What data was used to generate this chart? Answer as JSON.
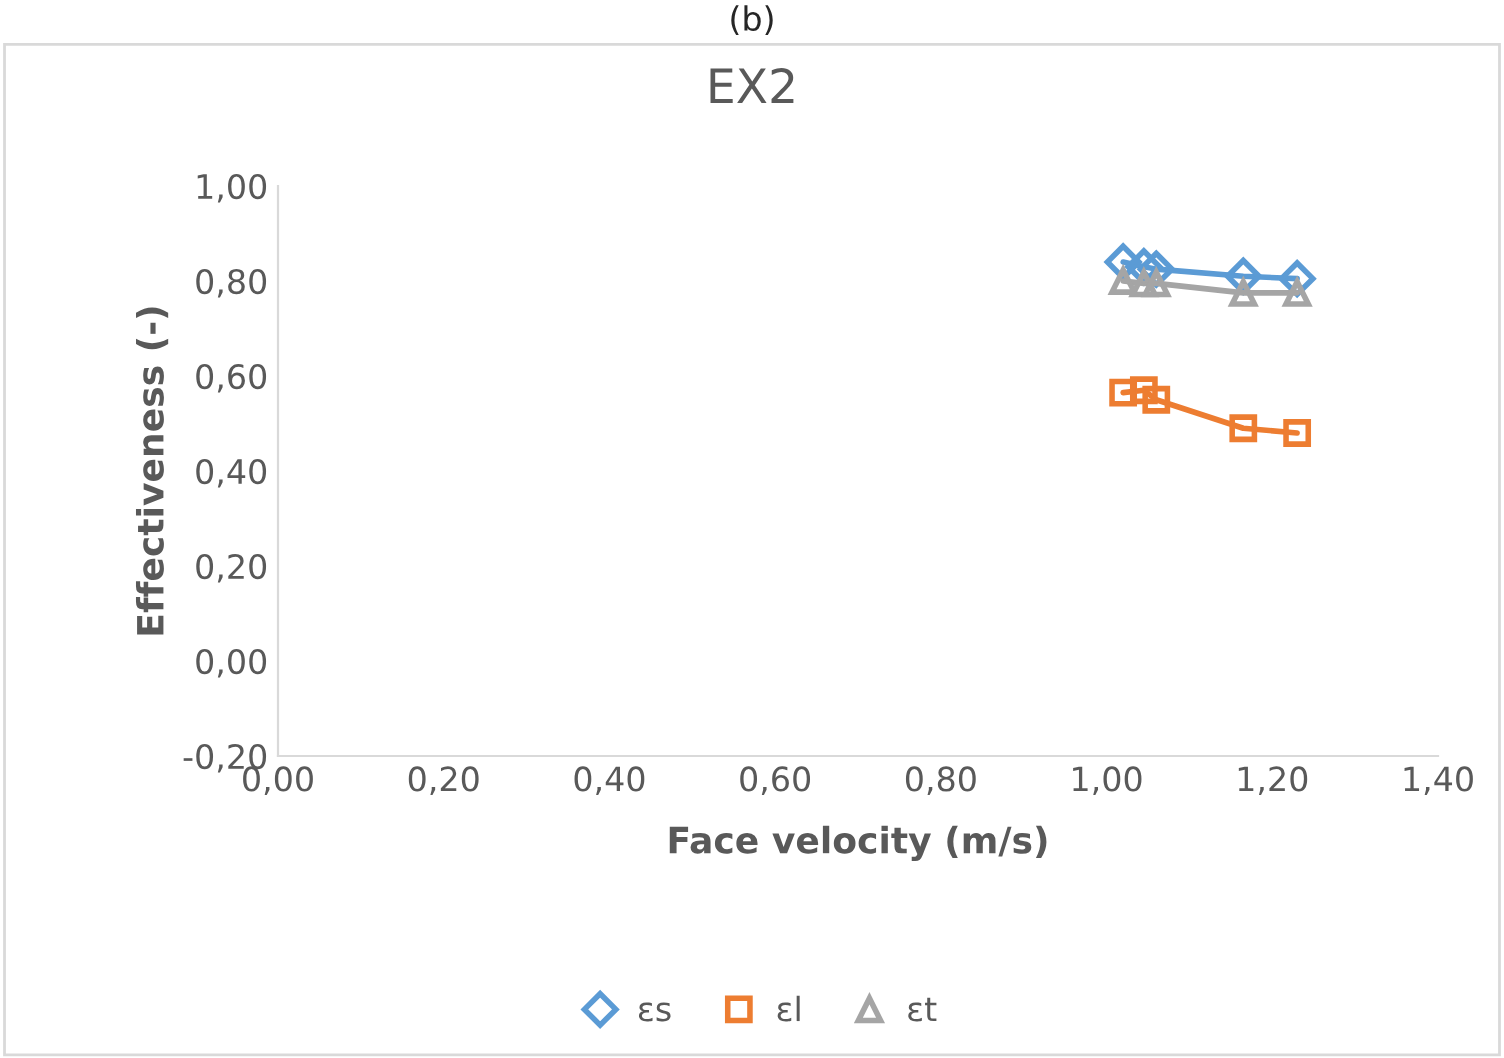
{
  "chart_data": {
    "type": "line",
    "title": "EX2",
    "xlabel": "Face velocity (m/s)",
    "ylabel": "Effectiveness (-)",
    "annotations": [
      "(b)"
    ],
    "x": [
      1.02,
      1.045,
      1.06,
      1.165,
      1.23
    ],
    "series": [
      {
        "name": "εs",
        "color": "#5b9bd5",
        "marker": "diamond",
        "values": [
          0.84,
          0.83,
          0.825,
          0.81,
          0.805
        ]
      },
      {
        "name": "εl",
        "color": "#ed7d31",
        "marker": "square",
        "values": [
          0.565,
          0.57,
          0.55,
          0.49,
          0.48
        ]
      },
      {
        "name": "εt",
        "color": "#a5a5a5",
        "marker": "triangle",
        "values": [
          0.8,
          0.795,
          0.795,
          0.775,
          0.775
        ]
      }
    ],
    "xlim": [
      0,
      1.4
    ],
    "xticks": [
      {
        "value": 0,
        "label": "0,00"
      },
      {
        "value": 0.2,
        "label": "0,20"
      },
      {
        "value": 0.4,
        "label": "0,40"
      },
      {
        "value": 0.6,
        "label": "0,60"
      },
      {
        "value": 0.8,
        "label": "0,80"
      },
      {
        "value": 1.0,
        "label": "1,00"
      },
      {
        "value": 1.2,
        "label": "1,20"
      },
      {
        "value": 1.4,
        "label": "1,40"
      }
    ],
    "ylim": [
      -0.2,
      1.0
    ],
    "yticks": [
      {
        "value": -0.2,
        "label": "-0,20"
      },
      {
        "value": 0,
        "label": "0,00"
      },
      {
        "value": 0.2,
        "label": "0,20"
      },
      {
        "value": 0.4,
        "label": "0,40"
      },
      {
        "value": 0.6,
        "label": "0,60"
      },
      {
        "value": 0.8,
        "label": "0,80"
      },
      {
        "value": 1.0,
        "label": "1,00"
      }
    ],
    "grid": false,
    "legend": "bottom",
    "line_style": "solid"
  }
}
